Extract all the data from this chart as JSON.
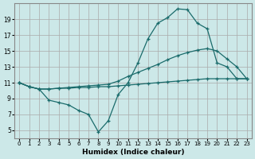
{
  "xlabel": "Humidex (Indice chaleur)",
  "bg_color": "#cce8e8",
  "grid_color": "#aaaaaa",
  "line_color": "#1a6b6b",
  "xlim": [
    -0.5,
    23.5
  ],
  "ylim": [
    4,
    21
  ],
  "xticks": [
    0,
    1,
    2,
    3,
    4,
    5,
    6,
    7,
    8,
    9,
    10,
    11,
    12,
    13,
    14,
    15,
    16,
    17,
    18,
    19,
    20,
    21,
    22,
    23
  ],
  "yticks": [
    5,
    7,
    9,
    11,
    13,
    15,
    17,
    19
  ],
  "series": [
    {
      "x": [
        0,
        1,
        2,
        3,
        4,
        5,
        6,
        7,
        8,
        9,
        10,
        11,
        12,
        13,
        14,
        15,
        16,
        17,
        18,
        19,
        20,
        21,
        22,
        23
      ],
      "y": [
        11,
        10.5,
        10.2,
        10.2,
        10.3,
        10.3,
        10.4,
        10.4,
        10.5,
        10.5,
        10.6,
        10.7,
        10.8,
        10.9,
        11.0,
        11.1,
        11.2,
        11.3,
        11.4,
        11.5,
        11.5,
        11.5,
        11.5,
        11.5
      ]
    },
    {
      "x": [
        0,
        1,
        2,
        3,
        4,
        5,
        6,
        7,
        8,
        9,
        10,
        11,
        12,
        13,
        14,
        15,
        16,
        17,
        18,
        19,
        20,
        21,
        22,
        23
      ],
      "y": [
        11,
        10.5,
        10.2,
        10.2,
        10.3,
        10.4,
        10.5,
        10.6,
        10.7,
        10.8,
        11.2,
        11.8,
        12.3,
        12.8,
        13.3,
        13.9,
        14.4,
        14.8,
        15.1,
        15.3,
        15.0,
        14.0,
        13.0,
        11.5
      ]
    },
    {
      "x": [
        0,
        1,
        2,
        3,
        4,
        5,
        6,
        7,
        8,
        9,
        10,
        11,
        12,
        13,
        14,
        15,
        16,
        17,
        18,
        19,
        20,
        21,
        22,
        23
      ],
      "y": [
        11,
        10.5,
        10.2,
        8.8,
        8.5,
        8.2,
        7.5,
        7.0,
        4.8,
        6.2,
        9.5,
        11.0,
        13.5,
        16.5,
        18.5,
        19.2,
        20.3,
        20.2,
        18.5,
        17.8,
        13.5,
        13.0,
        11.5,
        11.5
      ]
    }
  ]
}
